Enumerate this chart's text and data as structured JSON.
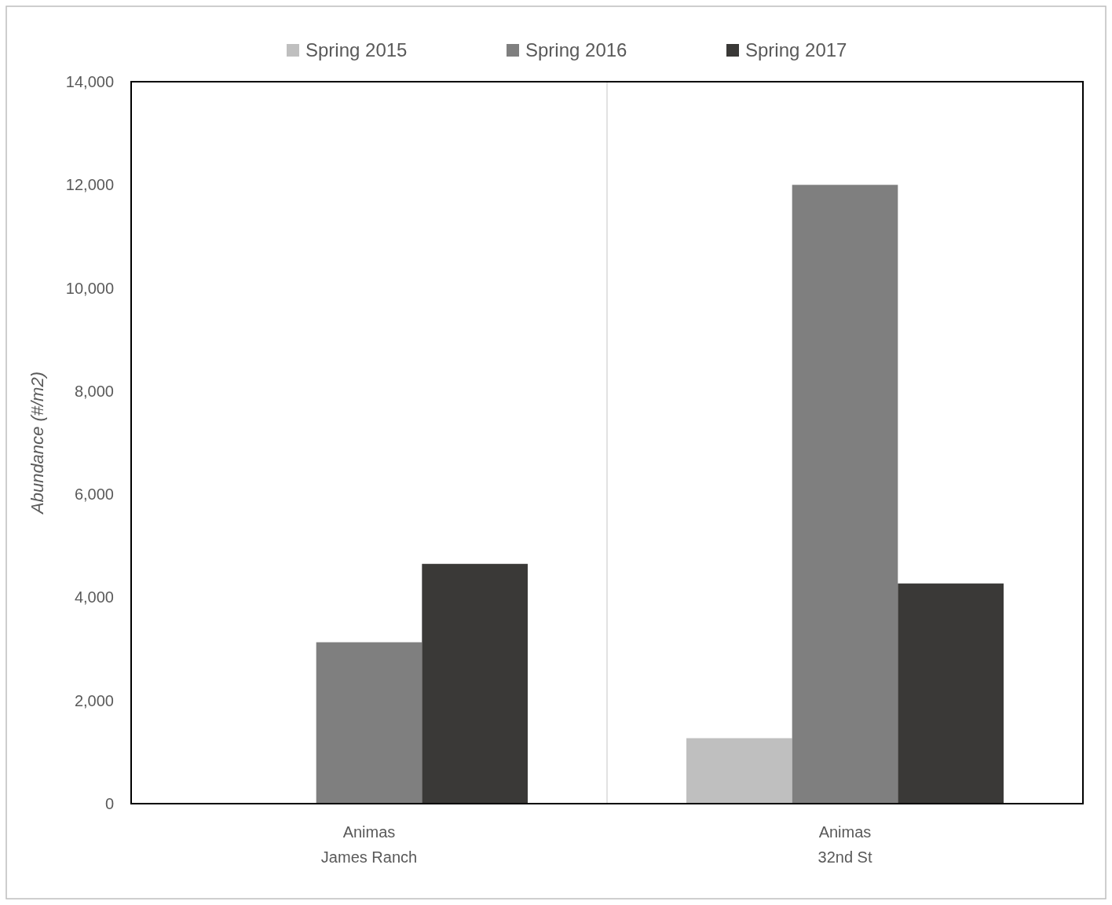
{
  "chart_data": {
    "type": "bar",
    "ylabel": "Abundance (#/m2)",
    "categories": [
      "Animas\nJames Ranch",
      "Animas\n32nd St"
    ],
    "series": [
      {
        "name": "Spring 2015",
        "color": "#bfbfbf",
        "values": [
          null,
          1270
        ]
      },
      {
        "name": "Spring 2016",
        "color": "#7f7f7f",
        "values": [
          3130,
          12000
        ]
      },
      {
        "name": "Spring 2017",
        "color": "#3a3937",
        "values": [
          4650,
          4270
        ]
      }
    ],
    "ylim": [
      0,
      14000
    ],
    "yticks": [
      {
        "value": 0,
        "label": "0"
      },
      {
        "value": 2000,
        "label": "2,000"
      },
      {
        "value": 4000,
        "label": "4,000"
      },
      {
        "value": 6000,
        "label": "6,000"
      },
      {
        "value": 8000,
        "label": "8,000"
      },
      {
        "value": 10000,
        "label": "10,000"
      },
      {
        "value": 12000,
        "label": "12,000"
      },
      {
        "value": 14000,
        "label": "14,000"
      }
    ],
    "grid": false,
    "legend": "top"
  }
}
